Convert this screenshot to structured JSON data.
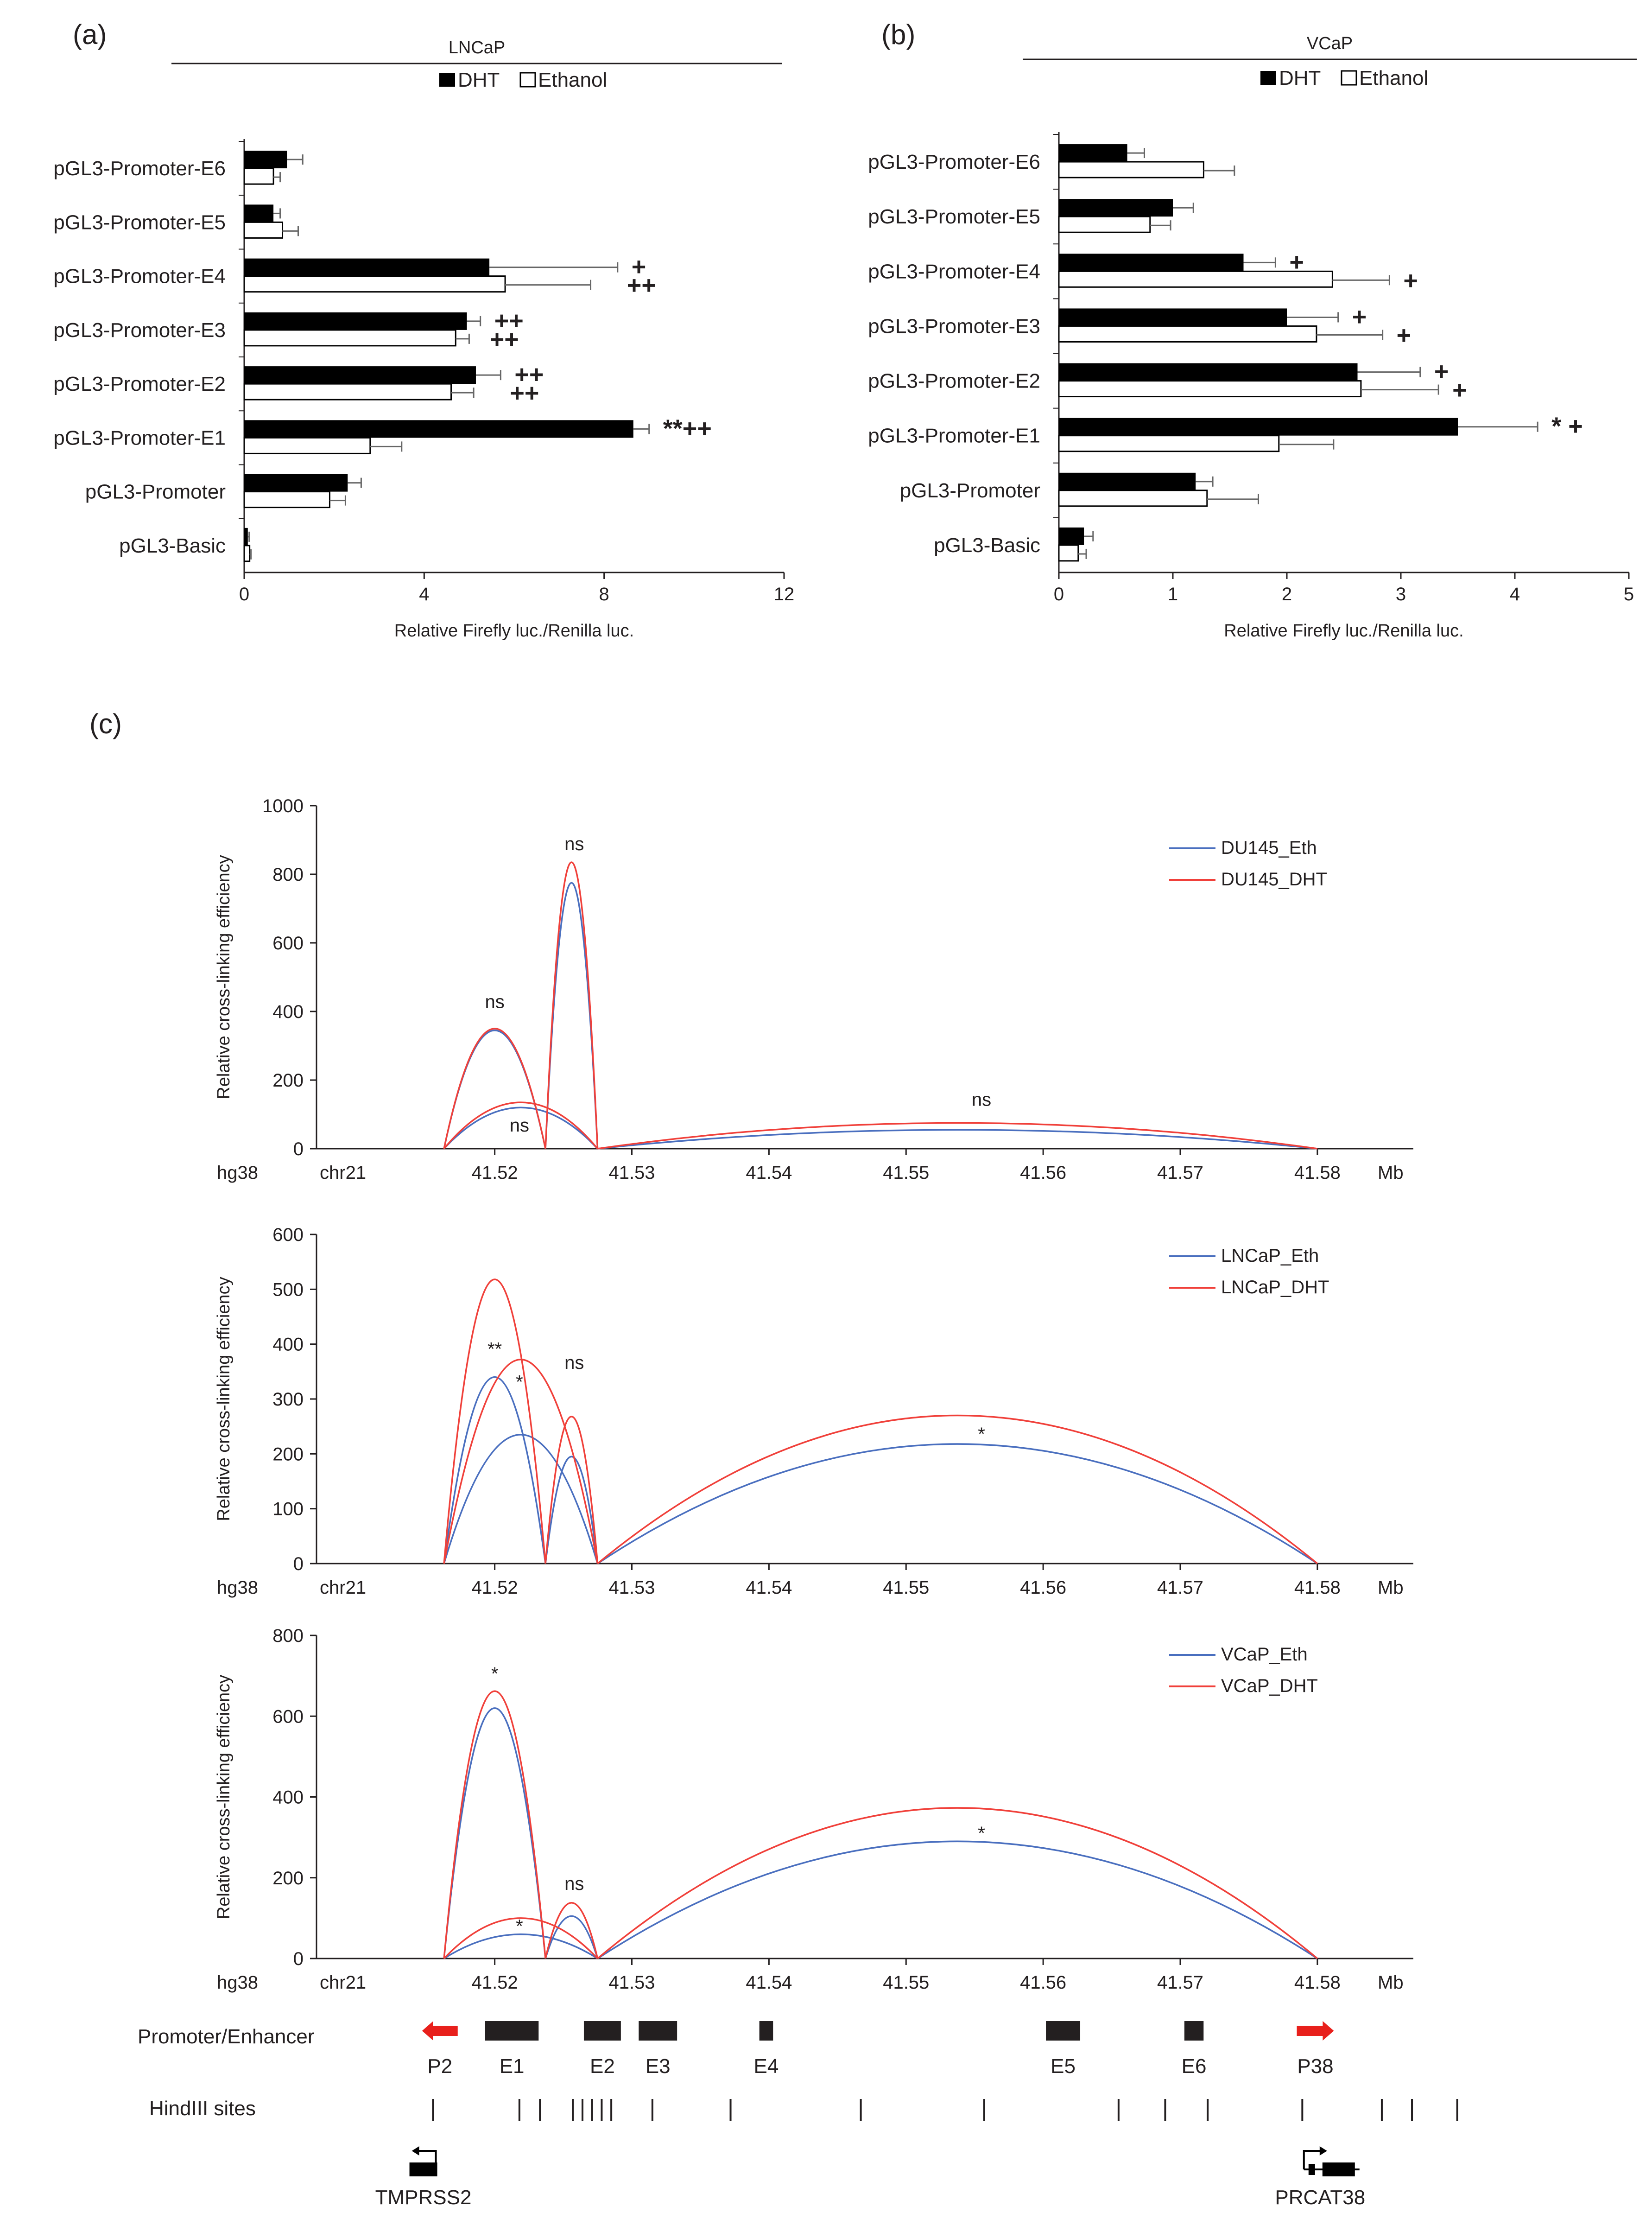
{
  "panels": [
    {
      "label": "(a)"
    },
    {
      "label": "(b)"
    },
    {
      "label": "(c)"
    }
  ],
  "legend_bars": {
    "dht": "DHT",
    "ethanol": "Ethanol"
  },
  "chart_data": [
    {
      "type": "bar",
      "orientation": "horizontal",
      "panel": "(a)",
      "title": "LNCaP",
      "xlabel": "Relative  Firefly luc./Renilla luc.",
      "xlim": [
        0,
        12
      ],
      "xticks": [
        0,
        4,
        8,
        12
      ],
      "categories": [
        "pGL3-Promoter-E6",
        "pGL3-Promoter-E5",
        "pGL3-Promoter-E4",
        "pGL3-Promoter-E3",
        "pGL3-Promoter-E2",
        "pGL3-Promoter-E1",
        "pGL3-Promoter",
        "pGL3-Basic"
      ],
      "series": [
        {
          "name": "DHT",
          "values": [
            0.95,
            0.65,
            5.45,
            4.95,
            5.15,
            8.65,
            2.3,
            0.08
          ],
          "errors": [
            0.35,
            0.15,
            2.85,
            0.3,
            0.55,
            0.35,
            0.3,
            0.03
          ]
        },
        {
          "name": "Ethanol",
          "values": [
            0.65,
            0.85,
            5.8,
            4.7,
            4.6,
            2.8,
            1.9,
            0.12
          ],
          "errors": [
            0.15,
            0.35,
            1.9,
            0.3,
            0.5,
            0.7,
            0.35,
            0.03
          ]
        }
      ],
      "annotations": [
        {
          "category": "pGL3-Promoter-E4",
          "dht": "+",
          "ethanol": "++"
        },
        {
          "category": "pGL3-Promoter-E3",
          "dht": "++",
          "ethanol": "++"
        },
        {
          "category": "pGL3-Promoter-E2",
          "dht": "++",
          "ethanol": "++"
        },
        {
          "category": "pGL3-Promoter-E1",
          "dht": "**++",
          "ethanol": ""
        }
      ]
    },
    {
      "type": "bar",
      "orientation": "horizontal",
      "panel": "(b)",
      "title": "VCaP",
      "xlabel": "Relative  Firefly luc./Renilla luc.",
      "xlim": [
        0,
        5
      ],
      "xticks": [
        0,
        1,
        2,
        3,
        4,
        5
      ],
      "categories": [
        "pGL3-Promoter-E6",
        "pGL3-Promoter-E5",
        "pGL3-Promoter-E4",
        "pGL3-Promoter-E3",
        "pGL3-Promoter-E2",
        "pGL3-Promoter-E1",
        "pGL3-Promoter",
        "pGL3-Basic"
      ],
      "series": [
        {
          "name": "DHT",
          "values": [
            0.6,
            1.0,
            1.62,
            2.0,
            2.62,
            3.5,
            1.2,
            0.22
          ],
          "errors": [
            0.15,
            0.18,
            0.28,
            0.45,
            0.55,
            0.7,
            0.15,
            0.08
          ]
        },
        {
          "name": "Ethanol",
          "values": [
            1.27,
            0.8,
            2.4,
            2.26,
            2.65,
            1.93,
            1.3,
            0.17
          ],
          "errors": [
            0.27,
            0.18,
            0.5,
            0.58,
            0.68,
            0.48,
            0.45,
            0.07
          ]
        }
      ],
      "annotations": [
        {
          "category": "pGL3-Promoter-E4",
          "dht": "+",
          "ethanol": "+"
        },
        {
          "category": "pGL3-Promoter-E3",
          "dht": "+",
          "ethanol": "+"
        },
        {
          "category": "pGL3-Promoter-E2",
          "dht": "+",
          "ethanol": "+"
        },
        {
          "category": "pGL3-Promoter-E1",
          "dht": "* +",
          "ethanol": ""
        }
      ]
    },
    {
      "type": "line",
      "panel": "(c)",
      "subtype": "arc",
      "ylabel": "Relative cross-linking efficiency",
      "ylim": [
        0,
        1000
      ],
      "yticks": [
        0,
        200,
        400,
        600,
        800,
        1000
      ],
      "xlim": [
        41.507,
        41.587
      ],
      "xticks": [
        41.52,
        41.53,
        41.54,
        41.55,
        41.56,
        41.57,
        41.58
      ],
      "axis_prefix": [
        "hg38",
        "chr21"
      ],
      "x_unit": "Mb",
      "series": [
        {
          "name": "DU145_Eth",
          "color": "#4a6fbf",
          "arcs": [
            {
              "x1": 41.5163,
              "x2": 41.5237,
              "peak": 345
            },
            {
              "x1": 41.5163,
              "x2": 41.5275,
              "peak": 120
            },
            {
              "x1": 41.5237,
              "x2": 41.5275,
              "peak": 775
            },
            {
              "x1": 41.5275,
              "x2": 41.58,
              "peak": 55
            }
          ]
        },
        {
          "name": "DU145_DHT",
          "color": "#f0403a",
          "arcs": [
            {
              "x1": 41.5163,
              "x2": 41.5237,
              "peak": 350
            },
            {
              "x1": 41.5163,
              "x2": 41.5275,
              "peak": 135
            },
            {
              "x1": 41.5237,
              "x2": 41.5275,
              "peak": 835
            },
            {
              "x1": 41.5275,
              "x2": 41.58,
              "peak": 75
            }
          ]
        }
      ],
      "annotations": [
        {
          "x": 41.52,
          "y": 410,
          "text": "ns"
        },
        {
          "x": 41.5258,
          "y": 870,
          "text": "ns"
        },
        {
          "x": 41.5218,
          "y": 50,
          "text": "ns"
        },
        {
          "x": 41.5555,
          "y": 125,
          "text": "ns"
        }
      ]
    },
    {
      "type": "line",
      "panel": "(c)",
      "subtype": "arc",
      "ylabel": "Relative cross-linking efficiency",
      "ylim": [
        0,
        600
      ],
      "yticks": [
        0,
        100,
        200,
        300,
        400,
        500,
        600
      ],
      "xlim": [
        41.507,
        41.587
      ],
      "xticks": [
        41.52,
        41.53,
        41.54,
        41.55,
        41.56,
        41.57,
        41.58
      ],
      "axis_prefix": [
        "hg38",
        "chr21"
      ],
      "x_unit": "Mb",
      "series": [
        {
          "name": "LNCaP_Eth",
          "color": "#4a6fbf",
          "arcs": [
            {
              "x1": 41.5163,
              "x2": 41.5237,
              "peak": 340
            },
            {
              "x1": 41.5163,
              "x2": 41.5275,
              "peak": 235
            },
            {
              "x1": 41.5237,
              "x2": 41.5275,
              "peak": 195
            },
            {
              "x1": 41.5275,
              "x2": 41.58,
              "peak": 218
            }
          ]
        },
        {
          "name": "LNCaP_DHT",
          "color": "#f0403a",
          "arcs": [
            {
              "x1": 41.5163,
              "x2": 41.5237,
              "peak": 518
            },
            {
              "x1": 41.5163,
              "x2": 41.5275,
              "peak": 372
            },
            {
              "x1": 41.5237,
              "x2": 41.5275,
              "peak": 268
            },
            {
              "x1": 41.5275,
              "x2": 41.58,
              "peak": 270
            }
          ]
        }
      ],
      "annotations": [
        {
          "x": 41.52,
          "y": 380,
          "text": "**"
        },
        {
          "x": 41.5218,
          "y": 320,
          "text": "*"
        },
        {
          "x": 41.5258,
          "y": 355,
          "text": "ns"
        },
        {
          "x": 41.5555,
          "y": 225,
          "text": "*"
        }
      ]
    },
    {
      "type": "line",
      "panel": "(c)",
      "subtype": "arc",
      "ylabel": "Relative cross-linking efficiency",
      "ylim": [
        0,
        800
      ],
      "yticks": [
        0,
        200,
        400,
        600,
        800
      ],
      "xlim": [
        41.507,
        41.587
      ],
      "xticks": [
        41.52,
        41.53,
        41.54,
        41.55,
        41.56,
        41.57,
        41.58
      ],
      "axis_prefix": [
        "hg38",
        "chr21"
      ],
      "x_unit": "Mb",
      "series": [
        {
          "name": "VCaP_Eth",
          "color": "#4a6fbf",
          "arcs": [
            {
              "x1": 41.5163,
              "x2": 41.5237,
              "peak": 620
            },
            {
              "x1": 41.5163,
              "x2": 41.5275,
              "peak": 60
            },
            {
              "x1": 41.5237,
              "x2": 41.5275,
              "peak": 105
            },
            {
              "x1": 41.5275,
              "x2": 41.58,
              "peak": 290
            }
          ]
        },
        {
          "name": "VCaP_DHT",
          "color": "#f0403a",
          "arcs": [
            {
              "x1": 41.5163,
              "x2": 41.5237,
              "peak": 662
            },
            {
              "x1": 41.5163,
              "x2": 41.5275,
              "peak": 100
            },
            {
              "x1": 41.5237,
              "x2": 41.5275,
              "peak": 138
            },
            {
              "x1": 41.5275,
              "x2": 41.58,
              "peak": 373
            }
          ]
        }
      ],
      "annotations": [
        {
          "x": 41.52,
          "y": 690,
          "text": "*"
        },
        {
          "x": 41.5218,
          "y": 65,
          "text": "*"
        },
        {
          "x": 41.5258,
          "y": 170,
          "text": "ns"
        },
        {
          "x": 41.5555,
          "y": 295,
          "text": "*"
        }
      ]
    }
  ],
  "tracks": {
    "promoter_label": "Promoter/Enhancer",
    "hindiii_label": "HindIII sites",
    "elements": [
      {
        "label": "P2",
        "start": 41.5147,
        "end": 41.5173,
        "kind": "promoter-left"
      },
      {
        "label": "E1",
        "start": 41.5193,
        "end": 41.5232,
        "kind": "enhancer"
      },
      {
        "label": "E2",
        "start": 41.5265,
        "end": 41.5292,
        "kind": "enhancer"
      },
      {
        "label": "E3",
        "start": 41.5305,
        "end": 41.5333,
        "kind": "enhancer"
      },
      {
        "label": "E4",
        "start": 41.5393,
        "end": 41.5403,
        "kind": "enhancer"
      },
      {
        "label": "E5",
        "start": 41.5602,
        "end": 41.5627,
        "kind": "enhancer"
      },
      {
        "label": "E6",
        "start": 41.5703,
        "end": 41.5717,
        "kind": "enhancer"
      },
      {
        "label": "P38",
        "start": 41.5785,
        "end": 41.5812,
        "kind": "promoter-right"
      }
    ],
    "hindiii_sites": [
      41.5155,
      41.5218,
      41.5233,
      41.5257,
      41.5264,
      41.5271,
      41.5278,
      41.5285,
      41.5315,
      41.5372,
      41.5467,
      41.5557,
      41.5655,
      41.5689,
      41.572,
      41.5789,
      41.5847,
      41.5869,
      41.5902
    ],
    "genes": [
      {
        "label": "TMPRSS2",
        "x": 41.5153,
        "direction": "left"
      },
      {
        "label": "PRCAT38",
        "x": 41.5802,
        "direction": "right"
      }
    ]
  }
}
